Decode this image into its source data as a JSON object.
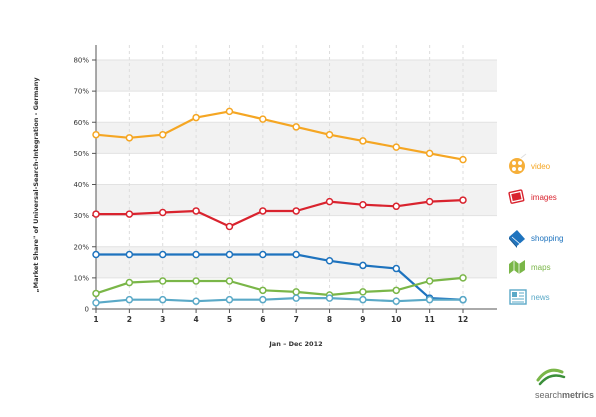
{
  "chart_data": {
    "type": "line",
    "title": "",
    "xlabel": "Jan – Dec 2012",
    "ylabel": "„Market Share\" of Universal-Search-Integration - Germany",
    "x": [
      1,
      2,
      3,
      4,
      5,
      6,
      7,
      8,
      9,
      10,
      11,
      12
    ],
    "x_tick_labels": [
      "1",
      "2",
      "3",
      "4",
      "5",
      "6",
      "7",
      "8",
      "9",
      "10",
      "11",
      "12"
    ],
    "ylim": [
      0,
      80
    ],
    "y_ticks": [
      0,
      10,
      20,
      30,
      40,
      50,
      60,
      70,
      80
    ],
    "y_tick_labels": [
      "0",
      "10%",
      "20%",
      "30%",
      "40%",
      "50%",
      "60%",
      "70%",
      "80%"
    ],
    "grid": true,
    "legend_placement": "right",
    "series": [
      {
        "name": "video",
        "color": "#f5a623",
        "icon": "film-reel-icon",
        "values": [
          56,
          55,
          56,
          61.5,
          63.5,
          61,
          58.5,
          56,
          54,
          52,
          50,
          48
        ]
      },
      {
        "name": "images",
        "color": "#d9232e",
        "icon": "photo-icon",
        "values": [
          30.5,
          30.5,
          31,
          31.5,
          26.5,
          31.5,
          31.5,
          34.5,
          33.5,
          33,
          34.5,
          35
        ]
      },
      {
        "name": "shopping",
        "color": "#1e73be",
        "icon": "shopping-cart-icon",
        "values": [
          17.5,
          17.5,
          17.5,
          17.5,
          17.5,
          17.5,
          17.5,
          15.5,
          14,
          13,
          3.5,
          3
        ]
      },
      {
        "name": "maps",
        "color": "#7ab648",
        "icon": "map-icon",
        "values": [
          5,
          8.5,
          9,
          9,
          9,
          6,
          5.5,
          4.5,
          5.5,
          6,
          9,
          10
        ]
      },
      {
        "name": "news",
        "color": "#5aa9c7",
        "icon": "newspaper-icon",
        "values": [
          2,
          3,
          3,
          2.5,
          3,
          3,
          3.5,
          3.5,
          3,
          2.5,
          3,
          3
        ]
      }
    ]
  },
  "brand": {
    "name_prefix": "search",
    "name_suffix": "metrics",
    "logo_icon": "swoosh-logo-icon"
  }
}
